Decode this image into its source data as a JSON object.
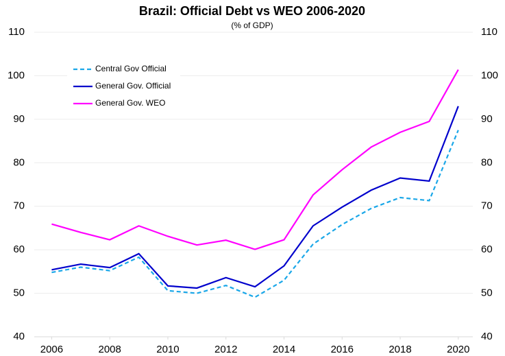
{
  "chart_data": {
    "type": "line",
    "title": "Brazil: Official Debt vs WEO 2006-2020",
    "subtitle": "(% of GDP)",
    "x": [
      2006,
      2007,
      2008,
      2009,
      2010,
      2011,
      2012,
      2013,
      2014,
      2015,
      2016,
      2017,
      2018,
      2019,
      2020
    ],
    "xlim": [
      2005.4,
      2020.5
    ],
    "xticks": [
      2006,
      2008,
      2010,
      2012,
      2014,
      2016,
      2018,
      2020
    ],
    "ylim": [
      40,
      110
    ],
    "yticks": [
      40,
      50,
      60,
      70,
      80,
      90,
      100,
      110
    ],
    "y2lim": [
      40,
      110
    ],
    "y2ticks": [
      40,
      50,
      60,
      70,
      80,
      90,
      100,
      110
    ],
    "grid": true,
    "legend": "upper left",
    "series": [
      {
        "name": "Central Gov Official",
        "color": "#1aa7e8",
        "dash": true,
        "values": [
          54.8,
          56.0,
          55.2,
          58.3,
          50.6,
          50.0,
          51.8,
          49.1,
          53.0,
          61.3,
          65.8,
          69.5,
          72.0,
          71.3,
          87.5
        ]
      },
      {
        "name": "General Gov. Official",
        "color": "#0000cc",
        "dash": false,
        "values": [
          55.4,
          56.7,
          55.9,
          59.1,
          51.7,
          51.2,
          53.6,
          51.5,
          56.3,
          65.5,
          69.8,
          73.7,
          76.5,
          75.8,
          93.0
        ]
      },
      {
        "name": "General Gov. WEO",
        "color": "#ff00ff",
        "dash": false,
        "values": [
          65.9,
          64.0,
          62.3,
          65.5,
          63.1,
          61.1,
          62.2,
          60.1,
          62.3,
          72.6,
          78.4,
          83.6,
          87.0,
          89.5,
          101.4
        ]
      }
    ]
  }
}
